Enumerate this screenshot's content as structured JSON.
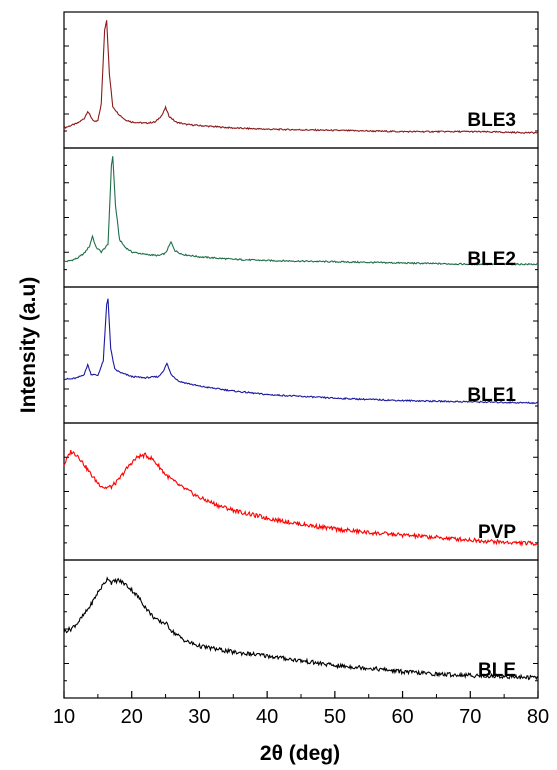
{
  "chart_data": {
    "type": "line",
    "title": "",
    "xlabel": "2θ (deg)",
    "ylabel": "Intensity (a.u)",
    "xlim": [
      10,
      80
    ],
    "x_ticks": [
      10,
      20,
      30,
      40,
      50,
      60,
      70,
      80
    ],
    "y_ticks_shown": false,
    "grid": false,
    "layout": "stacked panels, shared x-axis",
    "series": [
      {
        "name": "BLE3",
        "color": "#8b1a1a",
        "ylim": [
          0,
          1
        ],
        "points": [
          [
            10,
            0.1
          ],
          [
            11,
            0.12
          ],
          [
            12,
            0.14
          ],
          [
            13,
            0.18
          ],
          [
            13.5,
            0.24
          ],
          [
            14,
            0.19
          ],
          [
            14.5,
            0.15
          ],
          [
            15,
            0.16
          ],
          [
            15.5,
            0.3
          ],
          [
            16,
            0.92
          ],
          [
            16.3,
            1.0
          ],
          [
            16.7,
            0.55
          ],
          [
            17.2,
            0.28
          ],
          [
            18,
            0.22
          ],
          [
            19,
            0.17
          ],
          [
            20,
            0.15
          ],
          [
            22,
            0.14
          ],
          [
            23.5,
            0.15
          ],
          [
            24.5,
            0.21
          ],
          [
            25,
            0.27
          ],
          [
            25.5,
            0.2
          ],
          [
            26.5,
            0.15
          ],
          [
            28,
            0.13
          ],
          [
            30,
            0.12
          ],
          [
            35,
            0.1
          ],
          [
            40,
            0.09
          ],
          [
            50,
            0.08
          ],
          [
            60,
            0.07
          ],
          [
            70,
            0.07
          ],
          [
            80,
            0.06
          ]
        ]
      },
      {
        "name": "BLE2",
        "color": "#1f6e4a",
        "ylim": [
          0,
          1
        ],
        "points": [
          [
            10,
            0.14
          ],
          [
            11,
            0.15
          ],
          [
            12,
            0.17
          ],
          [
            13,
            0.21
          ],
          [
            13.8,
            0.27
          ],
          [
            14.2,
            0.35
          ],
          [
            14.7,
            0.26
          ],
          [
            15.5,
            0.22
          ],
          [
            16.5,
            0.28
          ],
          [
            17,
            0.92
          ],
          [
            17.2,
            1.0
          ],
          [
            17.6,
            0.6
          ],
          [
            18.2,
            0.32
          ],
          [
            19,
            0.26
          ],
          [
            20,
            0.22
          ],
          [
            22,
            0.2
          ],
          [
            24,
            0.19
          ],
          [
            25,
            0.21
          ],
          [
            25.8,
            0.3
          ],
          [
            26.4,
            0.23
          ],
          [
            27.5,
            0.2
          ],
          [
            30,
            0.18
          ],
          [
            35,
            0.16
          ],
          [
            40,
            0.15
          ],
          [
            50,
            0.14
          ],
          [
            60,
            0.13
          ],
          [
            70,
            0.12
          ],
          [
            80,
            0.12
          ]
        ]
      },
      {
        "name": "BLE1",
        "color": "#1a1aa0",
        "ylim": [
          0,
          1
        ],
        "points": [
          [
            10,
            0.3
          ],
          [
            11,
            0.3
          ],
          [
            12,
            0.31
          ],
          [
            13,
            0.34
          ],
          [
            13.5,
            0.42
          ],
          [
            14,
            0.34
          ],
          [
            15,
            0.33
          ],
          [
            15.8,
            0.45
          ],
          [
            16.3,
            0.92
          ],
          [
            16.5,
            0.97
          ],
          [
            16.9,
            0.55
          ],
          [
            17.5,
            0.38
          ],
          [
            18.5,
            0.35
          ],
          [
            20,
            0.32
          ],
          [
            22,
            0.31
          ],
          [
            24,
            0.32
          ],
          [
            24.8,
            0.38
          ],
          [
            25.2,
            0.43
          ],
          [
            25.8,
            0.34
          ],
          [
            27,
            0.28
          ],
          [
            30,
            0.24
          ],
          [
            35,
            0.2
          ],
          [
            40,
            0.17
          ],
          [
            50,
            0.14
          ],
          [
            60,
            0.12
          ],
          [
            70,
            0.11
          ],
          [
            80,
            0.1
          ]
        ]
      },
      {
        "name": "PVP",
        "color": "#ff0000",
        "ylim": [
          0,
          1
        ],
        "points": [
          [
            10,
            0.72
          ],
          [
            11,
            0.83
          ],
          [
            12,
            0.8
          ],
          [
            13,
            0.72
          ],
          [
            14,
            0.64
          ],
          [
            15,
            0.57
          ],
          [
            16,
            0.53
          ],
          [
            17,
            0.54
          ],
          [
            18,
            0.59
          ],
          [
            19,
            0.67
          ],
          [
            20,
            0.74
          ],
          [
            21,
            0.79
          ],
          [
            22,
            0.8
          ],
          [
            23,
            0.77
          ],
          [
            24,
            0.71
          ],
          [
            25,
            0.64
          ],
          [
            27,
            0.55
          ],
          [
            30,
            0.45
          ],
          [
            33,
            0.38
          ],
          [
            36,
            0.33
          ],
          [
            40,
            0.28
          ],
          [
            45,
            0.23
          ],
          [
            50,
            0.19
          ],
          [
            55,
            0.16
          ],
          [
            60,
            0.14
          ],
          [
            65,
            0.12
          ],
          [
            70,
            0.1
          ],
          [
            75,
            0.08
          ],
          [
            80,
            0.07
          ]
        ]
      },
      {
        "name": "BLE",
        "color": "#000000",
        "ylim": [
          0,
          1
        ],
        "points": [
          [
            10,
            0.48
          ],
          [
            11,
            0.5
          ],
          [
            12,
            0.55
          ],
          [
            13,
            0.62
          ],
          [
            14,
            0.7
          ],
          [
            15,
            0.8
          ],
          [
            16,
            0.88
          ],
          [
            16.5,
            0.92
          ],
          [
            17,
            0.88
          ],
          [
            18,
            0.9
          ],
          [
            19,
            0.87
          ],
          [
            20,
            0.82
          ],
          [
            21,
            0.76
          ],
          [
            22,
            0.68
          ],
          [
            23,
            0.61
          ],
          [
            24,
            0.56
          ],
          [
            25,
            0.55
          ],
          [
            26,
            0.48
          ],
          [
            28,
            0.4
          ],
          [
            30,
            0.36
          ],
          [
            35,
            0.31
          ],
          [
            40,
            0.28
          ],
          [
            45,
            0.24
          ],
          [
            50,
            0.2
          ],
          [
            55,
            0.18
          ],
          [
            60,
            0.15
          ],
          [
            65,
            0.13
          ],
          [
            70,
            0.12
          ],
          [
            75,
            0.11
          ],
          [
            80,
            0.1
          ]
        ]
      }
    ]
  }
}
